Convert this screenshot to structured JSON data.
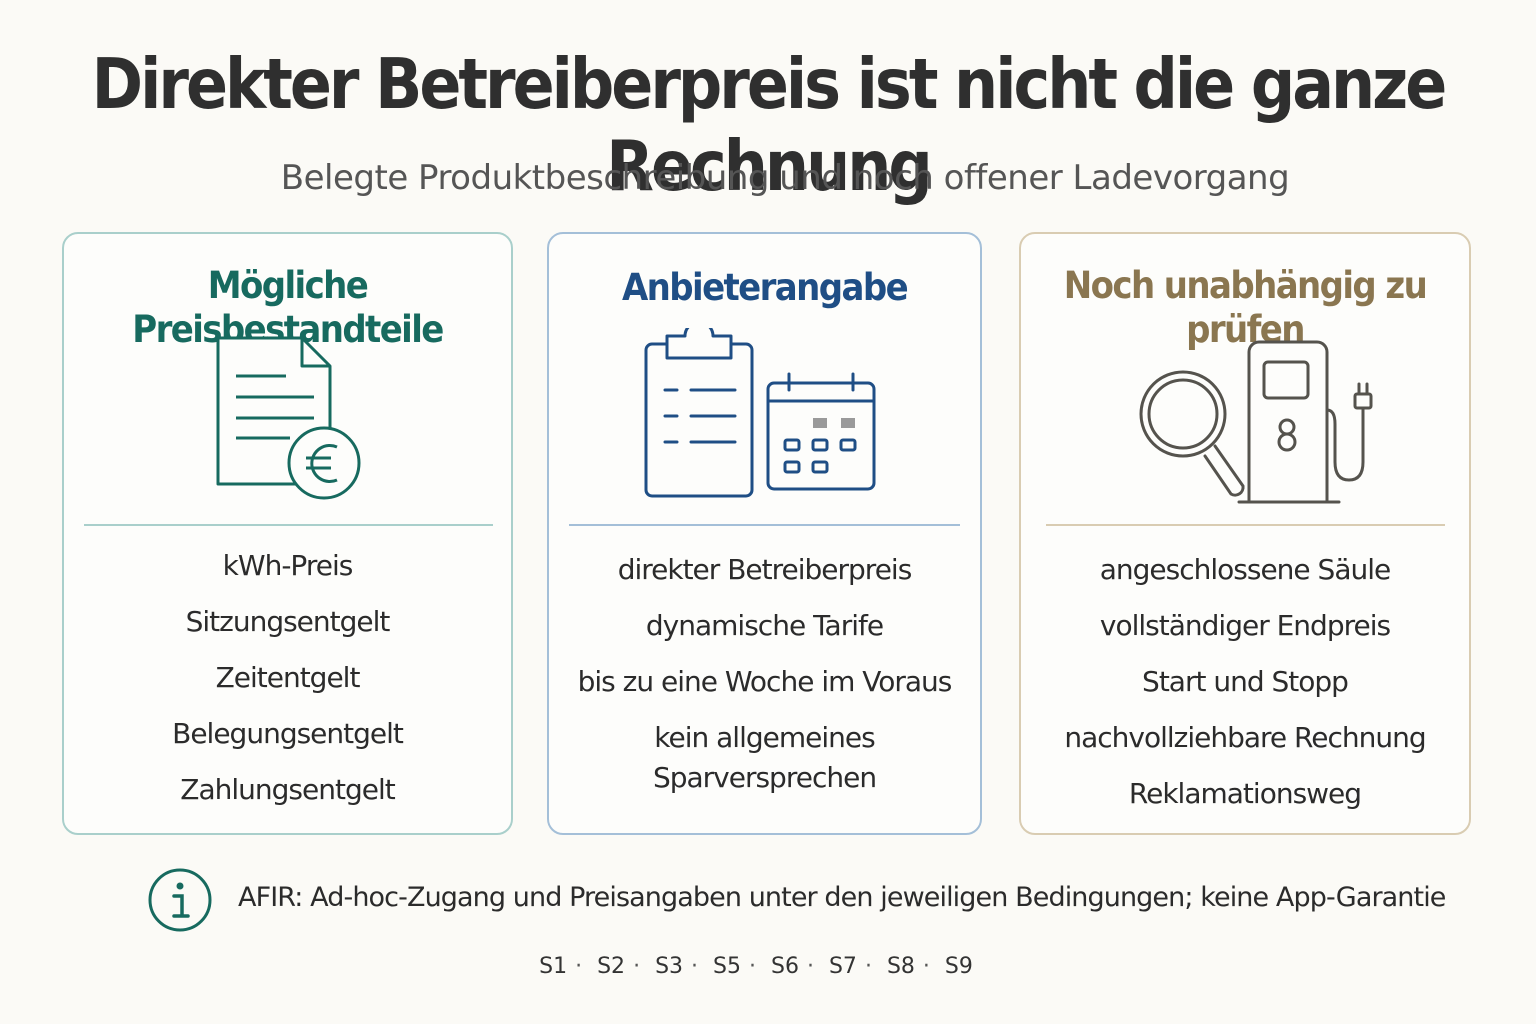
{
  "header": {
    "title": "Direkter Betreiberpreis ist nicht die ganze Rechnung",
    "subtitle": "Belegte Produktbeschreibung und noch offener Ladevorgang"
  },
  "cards": [
    {
      "title": "Mögliche Preisbestandteile",
      "icon": "document-euro-icon",
      "color": "#176a5f",
      "items": [
        "kWh-Preis",
        "Sitzungsentgelt",
        "Zeitentgelt",
        "Belegungsentgelt",
        "Zahlungsentgelt"
      ]
    },
    {
      "title": "Anbieterangabe",
      "icon": "clipboard-calendar-icon",
      "color": "#1f4e85",
      "items": [
        "direkter Betreiberpreis",
        "dynamische Tarife",
        "bis zu eine Woche im Voraus",
        "kein allgemeines Sparversprechen"
      ]
    },
    {
      "title": "Noch unabhängig zu prüfen",
      "icon": "magnifier-charger-icon",
      "color": "#8a7650",
      "items": [
        "angeschlossene Säule",
        "vollständiger Endpreis",
        "Start und Stopp",
        "nachvollziehbare Rechnung",
        "Reklamationsweg"
      ]
    }
  ],
  "note": {
    "icon": "info-icon",
    "text": "AFIR: Ad-hoc-Zugang und Preisangaben unter den jeweiligen Bedingungen; keine App-Garantie"
  },
  "sources": [
    "S1",
    "S2",
    "S3",
    "S5",
    "S6",
    "S7",
    "S8",
    "S9"
  ]
}
